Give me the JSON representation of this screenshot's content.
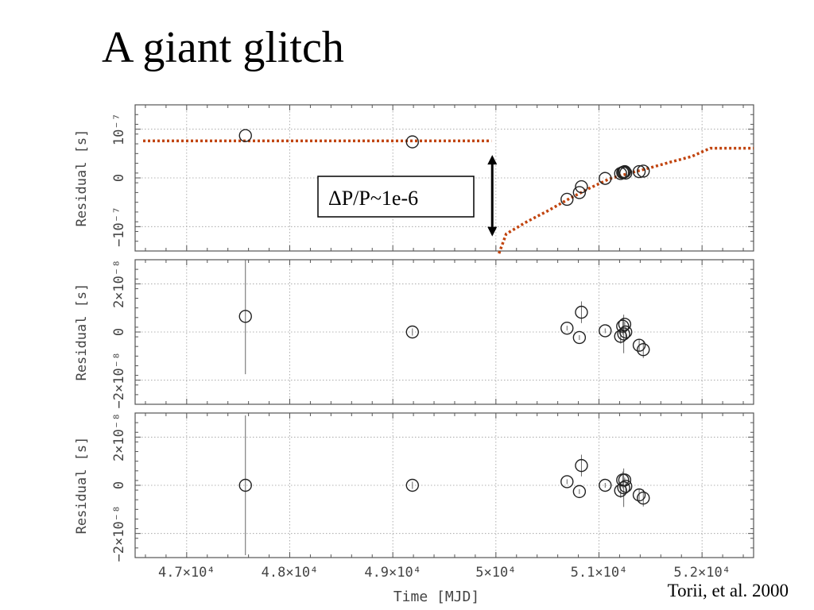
{
  "slide": {
    "title": "A giant glitch",
    "citation": "Torii, et al. 2000"
  },
  "annotation": {
    "label": "ΔP/P~1e-6"
  },
  "colors": {
    "axes": "#555555",
    "grid": "#9a9a9a",
    "points": "#222222",
    "fit_curve": "#c1440e",
    "arrow": "#000000"
  },
  "chart_data": [
    {
      "type": "scatter",
      "panel": "top",
      "ylabel": "Residual [s]",
      "ylim": [
        -1.5e-07,
        1.5e-07
      ],
      "yticks": [
        -1e-07,
        0,
        1e-07
      ],
      "ytick_labels": [
        "−10⁻⁷",
        "0",
        "10⁻⁷"
      ],
      "grid": true,
      "points": [
        {
          "x": 47570,
          "y": 8.7e-08
        },
        {
          "x": 49190,
          "y": 7.4e-08
        },
        {
          "x": 50690,
          "y": -4.4e-08
        },
        {
          "x": 50810,
          "y": -3e-08
        },
        {
          "x": 50830,
          "y": -1.8e-08
        },
        {
          "x": 51060,
          "y": -1e-09
        },
        {
          "x": 51210,
          "y": 9e-09
        },
        {
          "x": 51230,
          "y": 1.1e-08
        },
        {
          "x": 51240,
          "y": 1.2e-08
        },
        {
          "x": 51250,
          "y": 1.3e-08
        },
        {
          "x": 51260,
          "y": 1e-08
        },
        {
          "x": 51390,
          "y": 1.3e-08
        },
        {
          "x": 51430,
          "y": 1.4e-08
        }
      ],
      "fit_pre_glitch": {
        "x_range": [
          46500,
          49980
        ],
        "y": 7.6e-08
      },
      "fit_post_glitch": [
        {
          "x": 50030,
          "y": -1.55e-07
        },
        {
          "x": 50100,
          "y": -1.15e-07
        },
        {
          "x": 50300,
          "y": -9e-08
        },
        {
          "x": 50500,
          "y": -6.8e-08
        },
        {
          "x": 50700,
          "y": -4.4e-08
        },
        {
          "x": 50900,
          "y": -2.2e-08
        },
        {
          "x": 51100,
          "y": -2e-09
        },
        {
          "x": 51300,
          "y": 1e-08
        },
        {
          "x": 51500,
          "y": 2.1e-08
        },
        {
          "x": 51700,
          "y": 3.3e-08
        },
        {
          "x": 51900,
          "y": 4.4e-08
        },
        {
          "x": 52080,
          "y": 6.1e-08
        },
        {
          "x": 52500,
          "y": 6.1e-08
        }
      ],
      "glitch_arrow": {
        "x": 49980,
        "y_from": 4.7e-08,
        "y_to": -1.2e-07
      }
    },
    {
      "type": "scatter",
      "panel": "middle",
      "ylabel": "Residual [s]",
      "ylim": [
        -3e-08,
        3e-08
      ],
      "yticks": [
        -2e-08,
        0,
        2e-08
      ],
      "ytick_labels": [
        "−2×10⁻⁸",
        "0",
        "2×10⁻⁸"
      ],
      "grid": true,
      "points": [
        {
          "x": 47570,
          "y": 6.5e-09,
          "err": 2.4e-08
        },
        {
          "x": 49190,
          "y": 0.0,
          "err": 1.5e-09
        },
        {
          "x": 50690,
          "y": 1.6e-09,
          "err": 1e-09
        },
        {
          "x": 50810,
          "y": -2.3e-09,
          "err": 1e-09
        },
        {
          "x": 50830,
          "y": 8.2e-09,
          "err": 4.5e-09
        },
        {
          "x": 51060,
          "y": 5e-10,
          "err": 1e-09
        },
        {
          "x": 51210,
          "y": -1.8e-09,
          "err": 3e-09
        },
        {
          "x": 51230,
          "y": 2.4e-09,
          "err": 3.5e-09
        },
        {
          "x": 51240,
          "y": -8e-10,
          "err": 8e-09
        },
        {
          "x": 51250,
          "y": 3.2e-09,
          "err": 1e-09
        },
        {
          "x": 51260,
          "y": 0.0,
          "err": 2e-09
        },
        {
          "x": 51390,
          "y": -5.5e-09,
          "err": 2.5e-09
        },
        {
          "x": 51430,
          "y": -7.3e-09,
          "err": 3.5e-09
        }
      ]
    },
    {
      "type": "scatter",
      "panel": "bottom",
      "ylabel": "Residual [s]",
      "xlabel": "Time [MJD]",
      "ylim": [
        -3e-08,
        3e-08
      ],
      "yticks": [
        -2e-08,
        0,
        2e-08
      ],
      "ytick_labels": [
        "−2×10⁻⁸",
        "0",
        "2×10⁻⁸"
      ],
      "xlim": [
        46500,
        52500
      ],
      "xticks": [
        47000,
        48000,
        49000,
        50000,
        51000,
        52000
      ],
      "xtick_labels": [
        "4.7×10⁴",
        "4.8×10⁴",
        "4.9×10⁴",
        "5×10⁴",
        "5.1×10⁴",
        "5.2×10⁴"
      ],
      "grid": true,
      "points": [
        {
          "x": 47570,
          "y": 0.0,
          "err": 2.9e-08
        },
        {
          "x": 49190,
          "y": 0.0,
          "err": 1.5e-09
        },
        {
          "x": 50690,
          "y": 1.5e-09,
          "err": 1e-09
        },
        {
          "x": 50810,
          "y": -2.6e-09,
          "err": 1e-09
        },
        {
          "x": 50830,
          "y": 8.2e-09,
          "err": 4.5e-09
        },
        {
          "x": 51060,
          "y": 0.0,
          "err": 1e-09
        },
        {
          "x": 51210,
          "y": -2.2e-09,
          "err": 3e-09
        },
        {
          "x": 51230,
          "y": 2.2e-09,
          "err": 3.5e-09
        },
        {
          "x": 51240,
          "y": -1e-09,
          "err": 8e-09
        },
        {
          "x": 51250,
          "y": 2.2e-09,
          "err": 1e-09
        },
        {
          "x": 51260,
          "y": -4e-10,
          "err": 2e-09
        },
        {
          "x": 51390,
          "y": -4e-09,
          "err": 2.5e-09
        },
        {
          "x": 51430,
          "y": -5.3e-09,
          "err": 3.5e-09
        }
      ]
    }
  ]
}
